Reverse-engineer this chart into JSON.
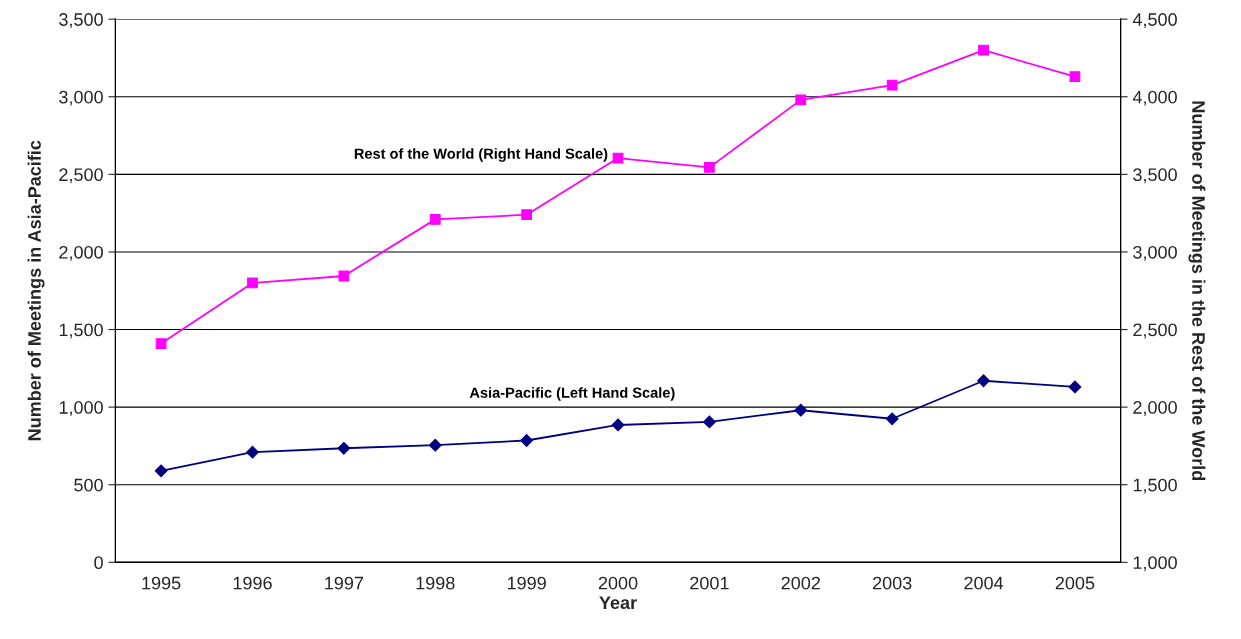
{
  "chart_data": {
    "type": "line",
    "xlabel": "Year",
    "ylabel": "Number of Meetings in Asia-Pacific",
    "y2label": "Number of Meetings in the Rest of the World",
    "categories": [
      "1995",
      "1996",
      "1997",
      "1998",
      "1999",
      "2000",
      "2001",
      "2002",
      "2003",
      "2004",
      "2005"
    ],
    "series": [
      {
        "name": "Rest of the World (Right Hand Scale)",
        "color": "#ff00ff",
        "marker": "square",
        "axis": "y2",
        "values": [
          2410,
          2800,
          2845,
          3210,
          3240,
          3605,
          3545,
          3980,
          4075,
          4300,
          4130
        ]
      },
      {
        "name": "Asia-Pacific (Left Hand Scale)",
        "color": "#000080",
        "marker": "diamond",
        "values": [
          590,
          710,
          735,
          755,
          785,
          885,
          905,
          980,
          925,
          1170,
          1130
        ]
      }
    ],
    "ylim": [
      0,
      3500
    ],
    "yticks": [
      {
        "value": 0,
        "label": "0"
      },
      {
        "value": 500,
        "label": "500"
      },
      {
        "value": 1000,
        "label": "1,000"
      },
      {
        "value": 1500,
        "label": "1,500"
      },
      {
        "value": 2000,
        "label": "2,000"
      },
      {
        "value": 2500,
        "label": "2,500"
      },
      {
        "value": 3000,
        "label": "3,000"
      },
      {
        "value": 3500,
        "label": "3,500"
      }
    ],
    "y2lim": [
      1000,
      4500
    ],
    "y2ticks": [
      {
        "value": 1000,
        "label": "1,000"
      },
      {
        "value": 1500,
        "label": "1,500"
      },
      {
        "value": 2000,
        "label": "2,000"
      },
      {
        "value": 2500,
        "label": "2,500"
      },
      {
        "value": 3000,
        "label": "3,000"
      },
      {
        "value": 3500,
        "label": "3,500"
      },
      {
        "value": 4000,
        "label": "4,000"
      },
      {
        "value": 4500,
        "label": "4,500"
      }
    ],
    "grid": "y",
    "legend": false
  }
}
